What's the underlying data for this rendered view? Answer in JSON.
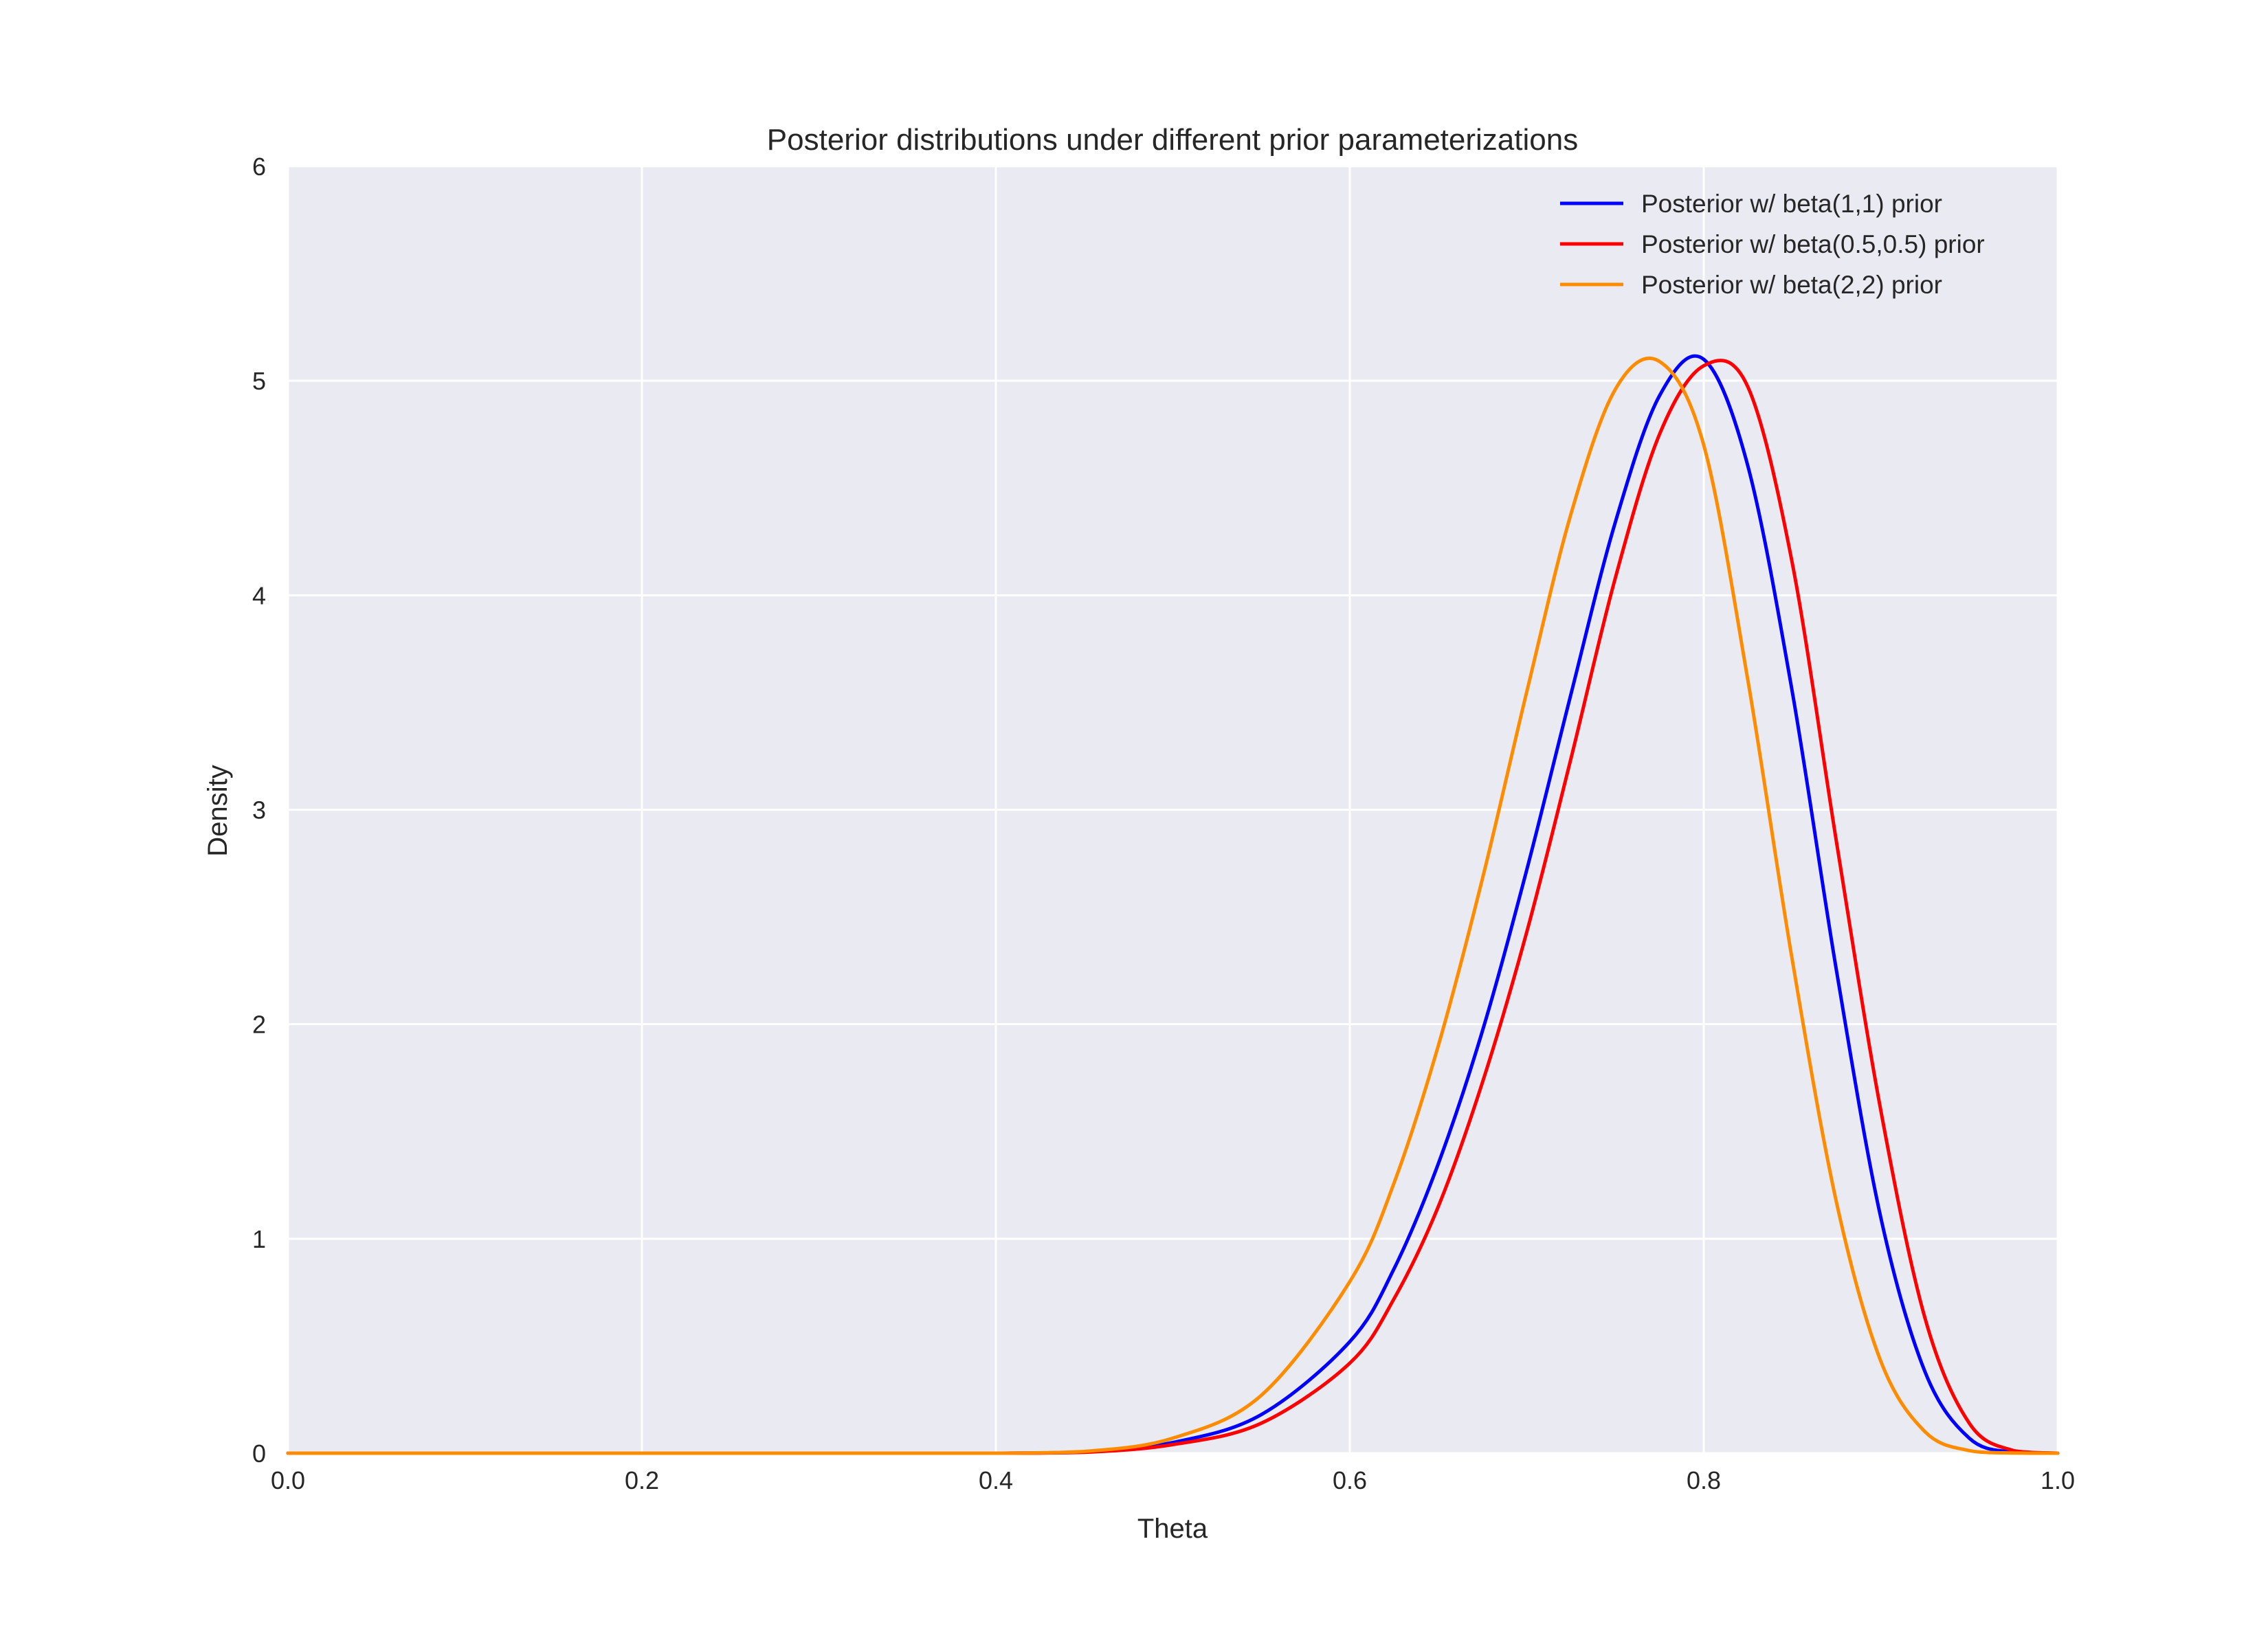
{
  "chart_data": {
    "type": "line",
    "title": "Posterior distributions under different prior parameterizations",
    "xlabel": "Theta",
    "ylabel": "Density",
    "xlim": [
      0.0,
      1.0
    ],
    "ylim": [
      0,
      6
    ],
    "xticks": [
      "0.0",
      "0.2",
      "0.4",
      "0.6",
      "0.8",
      "1.0"
    ],
    "yticks": [
      "0",
      "1",
      "2",
      "3",
      "4",
      "5",
      "6"
    ],
    "grid": true,
    "legend_position": "top-right",
    "x": [
      0.0,
      0.05,
      0.1,
      0.15,
      0.2,
      0.25,
      0.3,
      0.35,
      0.4,
      0.45,
      0.5,
      0.55,
      0.6,
      0.625,
      0.65,
      0.675,
      0.7,
      0.725,
      0.75,
      0.775,
      0.8,
      0.825,
      0.85,
      0.875,
      0.9,
      0.925,
      0.95,
      0.975,
      1.0
    ],
    "series": [
      {
        "name": "Posterior w/ beta(1,1) prior",
        "color": "#0000ff",
        "values": [
          0,
          0,
          0,
          0,
          0,
          0,
          0,
          0,
          0.0,
          0.005,
          0.05,
          0.18,
          0.52,
          0.86,
          1.35,
          1.97,
          2.72,
          3.54,
          4.34,
          4.93,
          5.1,
          4.6,
          3.55,
          2.25,
          1.1,
          0.38,
          0.07,
          0.004,
          0
        ]
      },
      {
        "name": "Posterior w/ beta(0.5,0.5) prior",
        "color": "#ff0000",
        "values": [
          0,
          0,
          0,
          0,
          0,
          0,
          0,
          0,
          0.0,
          0.004,
          0.04,
          0.14,
          0.42,
          0.72,
          1.15,
          1.73,
          2.43,
          3.24,
          4.08,
          4.75,
          5.07,
          4.97,
          4.15,
          2.85,
          1.6,
          0.63,
          0.14,
          0.012,
          0
        ]
      },
      {
        "name": "Posterior w/ beta(2,2) prior",
        "color": "#ff8c00",
        "values": [
          0,
          0,
          0,
          0,
          0,
          0,
          0,
          0,
          0.0,
          0.008,
          0.07,
          0.27,
          0.8,
          1.26,
          1.9,
          2.68,
          3.55,
          4.38,
          4.96,
          5.09,
          4.7,
          3.6,
          2.3,
          1.17,
          0.43,
          0.1,
          0.012,
          0.0005,
          0
        ]
      }
    ]
  }
}
